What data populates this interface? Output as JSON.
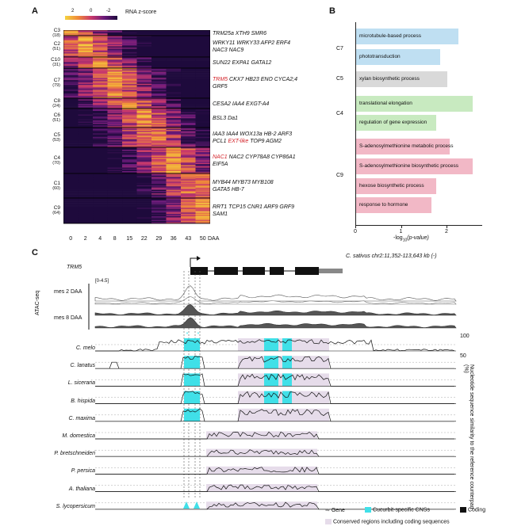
{
  "panels": {
    "a": "A",
    "b": "B",
    "c": "C"
  },
  "panel_a": {
    "legend_ticks": [
      "2",
      "0",
      "-2"
    ],
    "legend_label": "RNA z-score",
    "clusters": [
      {
        "id": "C3",
        "count": "(18)",
        "genes": "TRM25a XTH9 SMR6"
      },
      {
        "id": "C2",
        "count": "(51)",
        "genes": "WRKY11 WRKY33 AFP2 ERF4",
        "genes2": "NAC3 NAC9"
      },
      {
        "id": "C10",
        "count": "(31)",
        "genes": "SUN22 EXPA1 GATA12"
      },
      {
        "id": "C7",
        "count": "(79)",
        "genes_red": "TRM5",
        "genes": " CKX7 HB23 ENO CYCA2;4",
        "genes2": "GRF5"
      },
      {
        "id": "C8",
        "count": "(24)",
        "genes": "CESA2 IAA4 EXGT-A4"
      },
      {
        "id": "C6",
        "count": "(51)",
        "genes": "BSL3 Da1"
      },
      {
        "id": "C5",
        "count": "(53)",
        "genes": "IAA3 IAA4 WOX13a HB-2 ARF3",
        "genes2_pre": "PCL1 ",
        "genes2_red": "EXT-like",
        "genes2_post": " TOP9 AGM2"
      },
      {
        "id": "C4",
        "count": "(70)",
        "genes_red": "NAC1",
        "genes": " NAC2 CYP78A8 CYP86A1",
        "genes2": "EIF5A"
      },
      {
        "id": "C1",
        "count": "(60)",
        "genes": "MYB44 MYB73 MYB108",
        "genes2": "GATA5 HB-7"
      },
      {
        "id": "C9",
        "count": "(64)",
        "genes": "RRT1 TCP15 CNR1 ARF9 GRF9",
        "genes2": "SAM1"
      }
    ],
    "x_ticks": [
      "0",
      "2",
      "4",
      "8",
      "15",
      "22",
      "29",
      "36",
      "43",
      "50"
    ],
    "x_unit": "DAA"
  },
  "panel_b": {
    "groups": [
      "C7",
      "C5",
      "C4",
      "C9"
    ],
    "xlabel_pre": "-log",
    "xlabel_sub": "10",
    "xlabel_post": "(p-value)",
    "x_ticks": [
      "0",
      "1",
      "2"
    ]
  },
  "chart_data": {
    "type": "bar",
    "orientation": "horizontal",
    "categories": [
      "microtubule-based process",
      "phototransduction",
      "xylan biosynthetic process",
      "translational elongation",
      "regulation of gene expression",
      "S-adenosylmethionine metabolic process",
      "S-adenosylmethionine biosynthetic process",
      "hexose biosynthetic process",
      "response to hormone"
    ],
    "group": [
      "C7",
      "C7",
      "C5",
      "C4",
      "C4",
      "C9",
      "C9",
      "C9",
      "C9"
    ],
    "values": [
      2.25,
      1.85,
      2.0,
      2.55,
      1.75,
      2.05,
      2.55,
      1.75,
      1.65
    ],
    "xlim": [
      0,
      2.6
    ],
    "colors": {
      "C7": "#bfdff2",
      "C5": "#d9d9d9",
      "C4": "#c8eac0",
      "C9": "#f2b8c6"
    }
  },
  "panel_c": {
    "gene": "TRM5",
    "locus": "C. sativus chr2:11,352-113,643 kb (-)",
    "atac_label": "ATAC-seq",
    "atac_range": "[0-4.5]",
    "atac_tracks": [
      "mes 2 DAA",
      "mes 8 DAA"
    ],
    "species": [
      "C. melo",
      "C. lanatus",
      "L. siceraria",
      "B. hispida",
      "C. maxima",
      "M. domestica",
      "P. bretschneideri",
      "P. persica",
      "A. thaliana",
      "S. lycopersicum"
    ],
    "y_ticks": [
      "100",
      "50"
    ],
    "ylabel": "Nucleotide sequence similarity to the reference counterpart (%)",
    "legend": {
      "gene": "Gene",
      "cns": "Cucurbit-specific CNSs",
      "coding": "Coding",
      "conserved": "Conserved regions including coding sequences"
    },
    "colors": {
      "cns": "#40e0e8",
      "conserved": "#e6dcea",
      "heat_high": "#f5d33f",
      "heat_low": "#2a0a4e"
    }
  }
}
